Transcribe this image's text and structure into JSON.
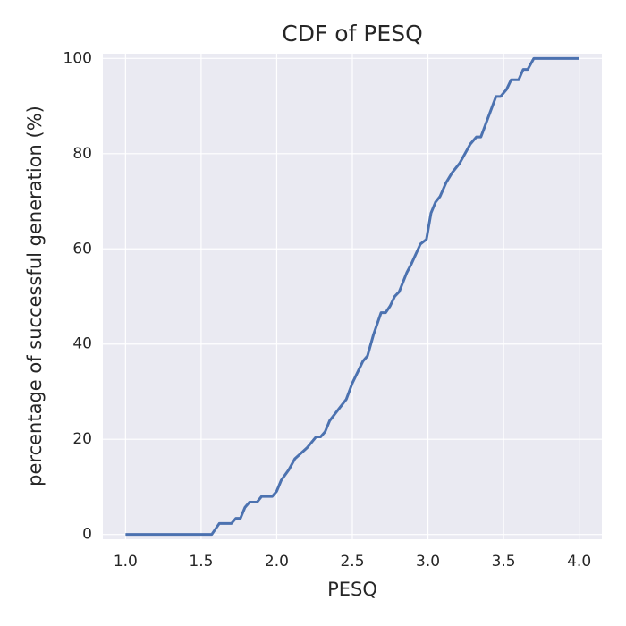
{
  "chart_data": {
    "type": "line",
    "title": "CDF of PESQ",
    "xlabel": "PESQ",
    "ylabel": "percentage of successful generation (%)",
    "x": [
      1.0,
      1.57,
      1.62,
      1.7,
      1.73,
      1.76,
      1.79,
      1.82,
      1.87,
      1.9,
      1.97,
      2.0,
      2.03,
      2.08,
      2.12,
      2.2,
      2.26,
      2.29,
      2.32,
      2.35,
      2.46,
      2.5,
      2.57,
      2.6,
      2.64,
      2.69,
      2.72,
      2.75,
      2.78,
      2.81,
      2.86,
      2.89,
      2.95,
      2.99,
      3.02,
      3.05,
      3.08,
      3.12,
      3.16,
      3.21,
      3.28,
      3.32,
      3.35,
      3.45,
      3.48,
      3.52,
      3.55,
      3.6,
      3.63,
      3.66,
      3.7,
      4.0
    ],
    "series": [
      {
        "color": "#4c72b0",
        "values": [
          0,
          0,
          2.3,
          2.3,
          3.4,
          3.4,
          5.7,
          6.8,
          6.8,
          8,
          8,
          9.1,
          11.4,
          13.6,
          15.9,
          18.2,
          20.5,
          20.5,
          21.6,
          23.9,
          28.4,
          31.8,
          36.4,
          37.5,
          42,
          46.6,
          46.6,
          48,
          50,
          51,
          55,
          56.8,
          61,
          62,
          67.5,
          69.8,
          71,
          73.9,
          76,
          78,
          82,
          83.5,
          83.5,
          92,
          92,
          93.5,
          95.5,
          95.5,
          97.7,
          97.7,
          100,
          100
        ]
      }
    ],
    "xlim": [
      0.85,
      4.15
    ],
    "ylim": [
      -1,
      101
    ],
    "xticks": [
      {
        "value": 1,
        "label": "1.0"
      },
      1.5,
      {
        "value": 2,
        "label": "2.0"
      },
      2.5,
      {
        "value": 3,
        "label": "3.0"
      },
      3.5,
      {
        "value": 4,
        "label": "4.0"
      }
    ],
    "yticks": [
      0,
      20,
      40,
      60,
      80,
      100
    ],
    "grid": true
  }
}
